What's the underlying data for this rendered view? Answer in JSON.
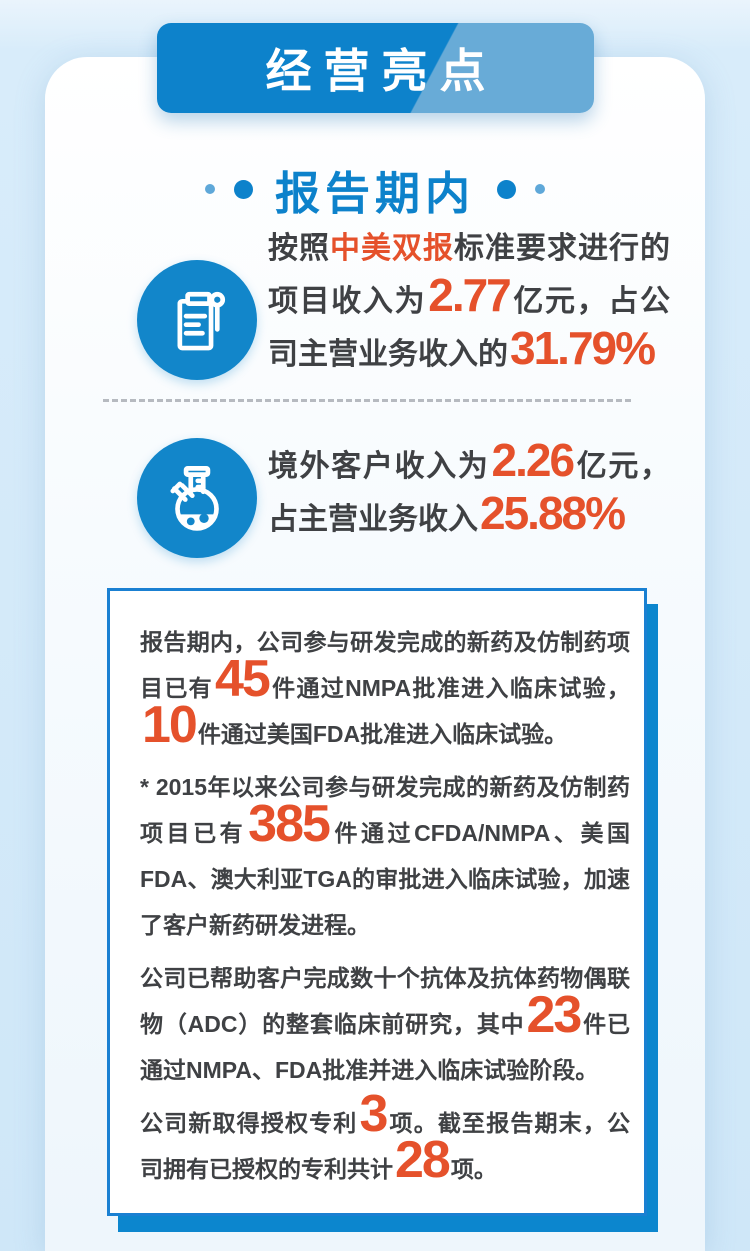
{
  "colors": {
    "primary_blue": "#0d82cb",
    "banner_light_blue": "#68abd7",
    "accent_orange": "#e5512b",
    "box_border_blue": "#1a80d2",
    "box_shadow_blue": "#0c86ce",
    "icon_circle_blue": "#1286ca",
    "text_gray": "#3f4144"
  },
  "banner": {
    "title": "经营亮点"
  },
  "section": {
    "title": "报告期内"
  },
  "highlights": [
    {
      "icon": "document-icon",
      "segments": [
        {
          "t": "按照"
        },
        {
          "t": "中美双报",
          "s": "em"
        },
        {
          "t": "标准要求进行的项目收入为"
        },
        {
          "t": "2.77",
          "s": "big"
        },
        {
          "t": "亿元，占公司主营业务收入的"
        },
        {
          "t": "31.79%",
          "s": "big"
        }
      ]
    },
    {
      "icon": "flask-icon",
      "segments": [
        {
          "t": "境外客户收入为"
        },
        {
          "t": "2.26",
          "s": "big"
        },
        {
          "t": "亿元，占主营业务收入"
        },
        {
          "t": "25.88%",
          "s": "big"
        }
      ]
    }
  ],
  "info_box": {
    "paragraphs": [
      [
        {
          "t": "报告期内，公司参与研发完成的新药及仿制药项目已有"
        },
        {
          "t": "45",
          "s": "big"
        },
        {
          "t": "件通过NMPA批准进入临床试验，"
        },
        {
          "t": "10",
          "s": "big"
        },
        {
          "t": "件通过美国FDA批准进入临床试验。"
        }
      ],
      [
        {
          "t": "* 2015年以来公司参与研发完成的新药及仿制药项目已有"
        },
        {
          "t": "385",
          "s": "big"
        },
        {
          "t": "件通过CFDA/NMPA、美国FDA、澳大利亚TGA的审批进入临床试验，加速了客户新药研发进程。"
        }
      ],
      [
        {
          "t": "公司已帮助客户完成数十个抗体及抗体药物偶联物（ADC）的整套临床前研究，其中"
        },
        {
          "t": "23",
          "s": "big"
        },
        {
          "t": "件已通过NMPA、FDA批准并进入临床试验阶段。"
        }
      ],
      [
        {
          "t": "公司新取得授权专利"
        },
        {
          "t": "3",
          "s": "big"
        },
        {
          "t": "项。截至报告期末，公司拥有已授权的专利共计"
        },
        {
          "t": "28",
          "s": "big"
        },
        {
          "t": "项。"
        }
      ]
    ]
  }
}
